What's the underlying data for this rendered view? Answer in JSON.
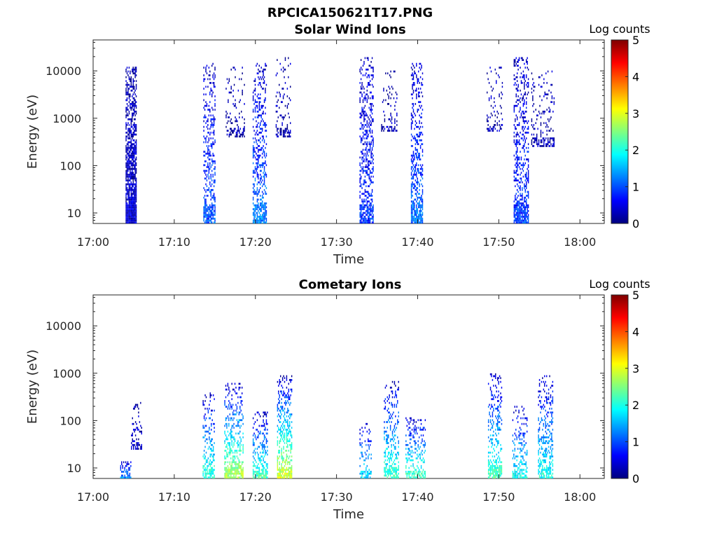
{
  "figure_title": "RPCICA150621T17.PNG",
  "colors": {
    "background": "#ffffff",
    "axis": "#262626",
    "colormap": "jet"
  },
  "chart_data": [
    {
      "type": "heatmap",
      "title": "Solar Wind Ions",
      "xlabel": "Time",
      "ylabel": "Energy (eV)",
      "x_ticks": [
        "17:00",
        "17:10",
        "17:20",
        "17:30",
        "17:40",
        "17:50",
        "18:00"
      ],
      "y_ticks": [
        "10",
        "100",
        "1000",
        "10000"
      ],
      "xlim": [
        "17:00",
        "18:03"
      ],
      "ylim": [
        6,
        45000
      ],
      "yscale": "log",
      "grid": false,
      "colorbar": {
        "title": "Log counts",
        "ticks": [
          "0",
          "1",
          "2",
          "3",
          "4",
          "5"
        ],
        "range": [
          0,
          5
        ]
      },
      "seed": 11,
      "bursts": [
        {
          "start": "17:04:00",
          "end": "17:05:20",
          "ymax": 12000,
          "density": 0.92,
          "low_value": 0.4,
          "high_value": 0.2
        },
        {
          "start": "17:13:35",
          "end": "17:15:05",
          "ymax": 15000,
          "density": 0.45,
          "low_value": 1.1,
          "high_value": 0.3
        },
        {
          "start": "17:16:20",
          "end": "17:18:40",
          "ymin": 400,
          "ymax": 12000,
          "density": 0.15,
          "low_value": 0.2,
          "high_value": 0.2
        },
        {
          "start": "17:19:40",
          "end": "17:21:20",
          "ymax": 15000,
          "density": 0.45,
          "low_value": 1.3,
          "high_value": 0.3
        },
        {
          "start": "17:22:30",
          "end": "17:24:20",
          "ymin": 400,
          "ymax": 20000,
          "density": 0.18,
          "low_value": 0.2,
          "high_value": 0.2
        },
        {
          "start": "17:32:50",
          "end": "17:34:30",
          "ymax": 20000,
          "density": 0.45,
          "low_value": 0.9,
          "high_value": 0.3
        },
        {
          "start": "17:35:30",
          "end": "17:37:30",
          "ymin": 500,
          "ymax": 10000,
          "density": 0.2,
          "low_value": 0.2,
          "high_value": 0.2
        },
        {
          "start": "17:39:10",
          "end": "17:40:40",
          "ymax": 15000,
          "density": 0.5,
          "low_value": 1.2,
          "high_value": 0.3
        },
        {
          "start": "17:48:30",
          "end": "17:50:30",
          "ymin": 500,
          "ymax": 16000,
          "density": 0.15,
          "low_value": 0.2,
          "high_value": 0.2
        },
        {
          "start": "17:51:50",
          "end": "17:53:40",
          "ymax": 20000,
          "density": 0.45,
          "low_value": 0.9,
          "high_value": 0.3
        },
        {
          "start": "17:54:00",
          "end": "17:56:50",
          "ymin": 250,
          "ymax": 10000,
          "density": 0.15,
          "low_value": 0.2,
          "high_value": 0.2
        }
      ]
    },
    {
      "type": "heatmap",
      "title": "Cometary Ions",
      "xlabel": "Time",
      "ylabel": "Energy (eV)",
      "x_ticks": [
        "17:00",
        "17:10",
        "17:20",
        "17:30",
        "17:40",
        "17:50",
        "18:00"
      ],
      "y_ticks": [
        "10",
        "100",
        "1000",
        "10000"
      ],
      "xlim": [
        "17:00",
        "18:03"
      ],
      "ylim": [
        6,
        45000
      ],
      "yscale": "log",
      "grid": false,
      "colorbar": {
        "title": "Log counts",
        "ticks": [
          "0",
          "1",
          "2",
          "3",
          "4",
          "5"
        ],
        "range": [
          0,
          5
        ]
      },
      "seed": 29,
      "bursts": [
        {
          "start": "17:03:20",
          "end": "17:04:40",
          "ymax": 14,
          "density": 0.6,
          "low_value": 1.3,
          "high_value": 0.4
        },
        {
          "start": "17:04:40",
          "end": "17:06:00",
          "ymin": 25,
          "ymax": 250,
          "density": 0.3,
          "low_value": 0.3,
          "high_value": 0.2
        },
        {
          "start": "17:13:30",
          "end": "17:15:00",
          "ymax": 400,
          "density": 0.35,
          "low_value": 2.2,
          "high_value": 0.3
        },
        {
          "start": "17:16:10",
          "end": "17:18:30",
          "ymax": 600,
          "density": 0.45,
          "low_value": 2.8,
          "high_value": 0.3
        },
        {
          "start": "17:19:40",
          "end": "17:21:30",
          "ymax": 150,
          "density": 0.4,
          "low_value": 2.3,
          "high_value": 0.3
        },
        {
          "start": "17:22:40",
          "end": "17:24:30",
          "ymax": 900,
          "density": 0.5,
          "low_value": 3.0,
          "high_value": 0.3
        },
        {
          "start": "17:32:50",
          "end": "17:34:20",
          "ymax": 100,
          "density": 0.3,
          "low_value": 1.8,
          "high_value": 0.3
        },
        {
          "start": "17:35:50",
          "end": "17:37:40",
          "ymax": 700,
          "density": 0.4,
          "low_value": 2.2,
          "high_value": 0.3
        },
        {
          "start": "17:38:30",
          "end": "17:41:00",
          "ymax": 120,
          "density": 0.4,
          "low_value": 2.3,
          "high_value": 0.3
        },
        {
          "start": "17:48:40",
          "end": "17:50:20",
          "ymax": 1000,
          "density": 0.4,
          "low_value": 2.3,
          "high_value": 0.3
        },
        {
          "start": "17:51:40",
          "end": "17:53:30",
          "ymax": 200,
          "density": 0.35,
          "low_value": 2.0,
          "high_value": 0.3
        },
        {
          "start": "17:54:50",
          "end": "17:56:40",
          "ymax": 900,
          "density": 0.4,
          "low_value": 2.0,
          "high_value": 0.3
        }
      ]
    }
  ]
}
